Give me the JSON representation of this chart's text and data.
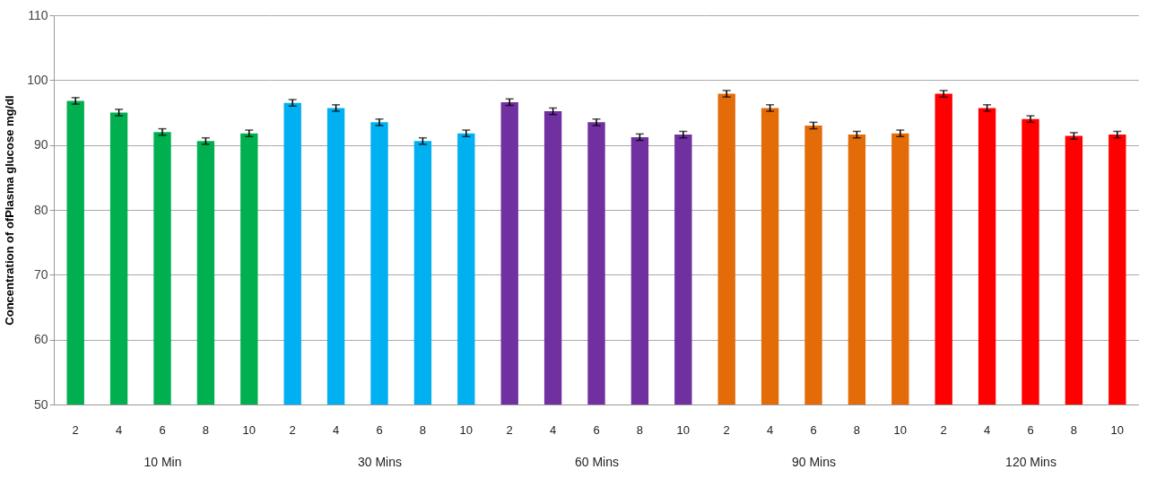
{
  "chart_data": [
    {
      "type": "bar",
      "ylabel": "Concentration of  ofPlasma  glucose mg/dl",
      "xlabel": "10 Min",
      "categories": [
        "2",
        "4",
        "6",
        "8",
        "10"
      ],
      "values": [
        96.8,
        95.0,
        92.0,
        90.6,
        91.8
      ],
      "errors": [
        0.5,
        0.5,
        0.5,
        0.5,
        0.5
      ],
      "color": "#00b050",
      "ylim": [
        50,
        110
      ],
      "yticks": [
        50,
        60,
        70,
        80,
        90,
        100,
        110
      ],
      "grid": "y"
    },
    {
      "type": "bar",
      "xlabel": "30 Mins",
      "categories": [
        "2",
        "4",
        "6",
        "8",
        "10"
      ],
      "values": [
        96.5,
        95.7,
        93.5,
        90.6,
        91.8
      ],
      "errors": [
        0.5,
        0.5,
        0.5,
        0.5,
        0.5
      ],
      "color": "#00b0f0",
      "ylim": [
        50,
        110
      ],
      "yticks": [
        50,
        60,
        70,
        80,
        90,
        100,
        110
      ],
      "grid": "y",
      "tick_labels": "x"
    },
    {
      "type": "bar",
      "xlabel": "60 Mins",
      "categories": [
        "2",
        "4",
        "6",
        "8",
        "10"
      ],
      "values": [
        96.6,
        95.2,
        93.5,
        91.2,
        91.6
      ],
      "errors": [
        0.5,
        0.5,
        0.5,
        0.5,
        0.5
      ],
      "color": "#7030a0",
      "ylim": [
        50,
        110
      ],
      "yticks": [
        50,
        60,
        70,
        80,
        90,
        100,
        110
      ],
      "grid": "y",
      "tick_labels": "x"
    },
    {
      "type": "bar",
      "xlabel": "90 Mins",
      "categories": [
        "2",
        "4",
        "6",
        "8",
        "10"
      ],
      "values": [
        97.9,
        95.7,
        93.0,
        91.6,
        91.8
      ],
      "errors": [
        0.5,
        0.5,
        0.5,
        0.5,
        0.5
      ],
      "color": "#e36c09",
      "ylim": [
        50,
        110
      ],
      "yticks": [
        50,
        60,
        70,
        80,
        90,
        100,
        110
      ],
      "grid": "y",
      "tick_labels": "x"
    },
    {
      "type": "bar",
      "xlabel": "120 Mins",
      "categories": [
        "2",
        "4",
        "6",
        "8",
        "10"
      ],
      "values": [
        97.9,
        95.7,
        94.0,
        91.4,
        91.6
      ],
      "errors": [
        0.5,
        0.5,
        0.5,
        0.5,
        0.5
      ],
      "color": "#ff0000",
      "ylim": [
        50,
        110
      ],
      "yticks": [
        50,
        60,
        70,
        80,
        90,
        100,
        110
      ],
      "grid": "y",
      "tick_labels": "x"
    }
  ]
}
